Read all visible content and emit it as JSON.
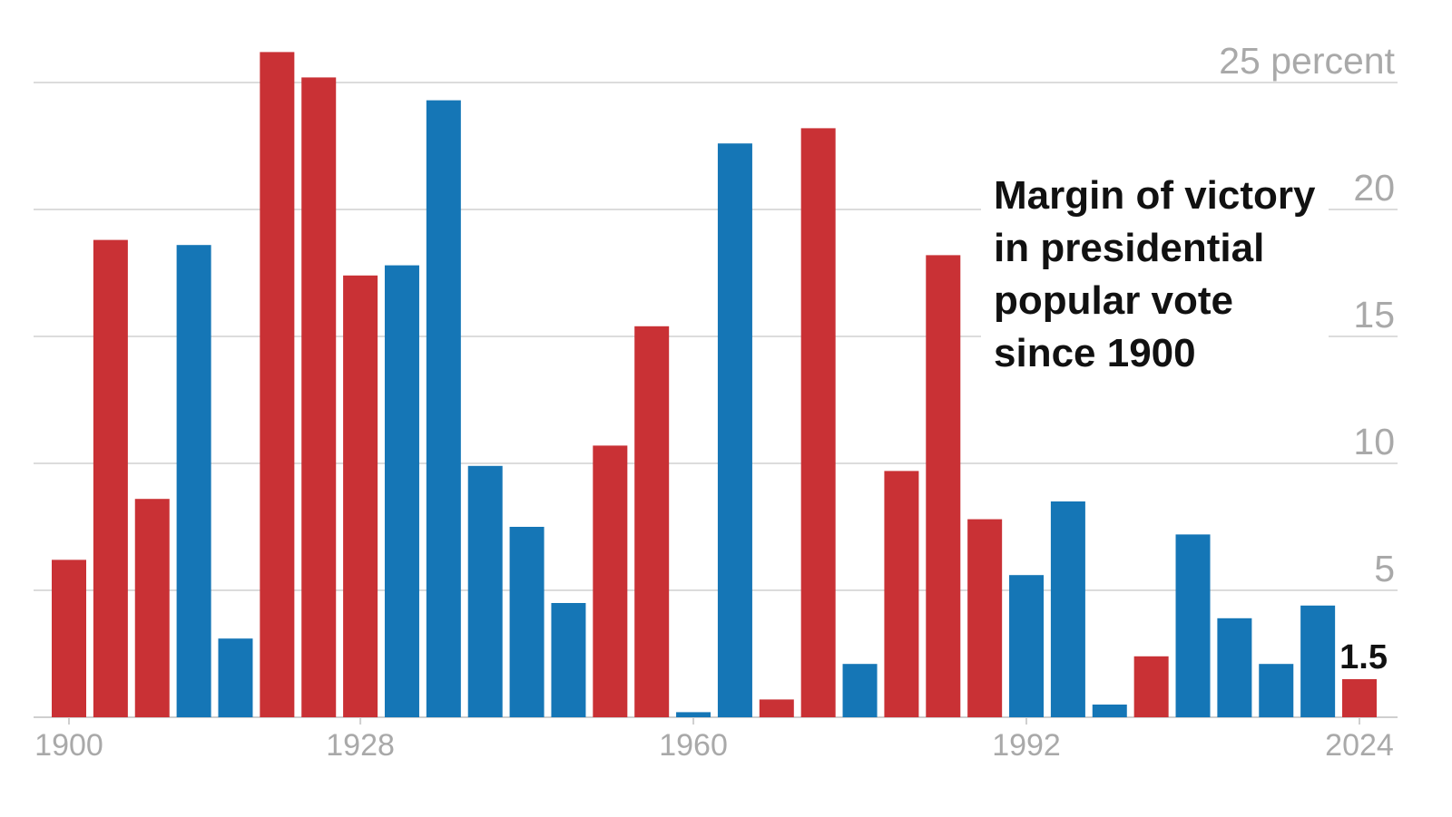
{
  "chart_data": {
    "type": "bar",
    "title": [
      "Margin of victory",
      "in presidential",
      "popular vote",
      "since 1900"
    ],
    "y_unit_label": "percent",
    "ylim": [
      0,
      25
    ],
    "y_ticks": [
      5,
      10,
      15,
      20,
      25
    ],
    "x_tick_labels": [
      "1900",
      "1928",
      "1960",
      "1992",
      "2024"
    ],
    "grid": true,
    "legend": "none",
    "colors": {
      "Republican": "#c93135",
      "Democrat": "#1576b6"
    },
    "years": [
      1900,
      1904,
      1908,
      1912,
      1916,
      1920,
      1924,
      1928,
      1932,
      1936,
      1940,
      1944,
      1948,
      1952,
      1956,
      1960,
      1964,
      1968,
      1972,
      1976,
      1980,
      1984,
      1988,
      1992,
      1996,
      2000,
      2004,
      2008,
      2012,
      2016,
      2020,
      2024
    ],
    "values": [
      6.2,
      18.8,
      8.6,
      18.6,
      3.1,
      26.2,
      25.2,
      17.4,
      17.8,
      24.3,
      9.9,
      7.5,
      4.5,
      10.7,
      15.4,
      0.2,
      22.6,
      0.7,
      23.2,
      2.1,
      9.7,
      18.2,
      7.8,
      5.6,
      8.5,
      0.5,
      2.4,
      7.2,
      3.9,
      2.1,
      4.4,
      1.5
    ],
    "parties": [
      "Republican",
      "Republican",
      "Republican",
      "Democrat",
      "Democrat",
      "Republican",
      "Republican",
      "Republican",
      "Democrat",
      "Democrat",
      "Democrat",
      "Democrat",
      "Democrat",
      "Republican",
      "Republican",
      "Democrat",
      "Democrat",
      "Republican",
      "Republican",
      "Democrat",
      "Republican",
      "Republican",
      "Republican",
      "Democrat",
      "Democrat",
      "Democrat",
      "Republican",
      "Democrat",
      "Democrat",
      "Democrat",
      "Democrat",
      "Republican"
    ],
    "annotation": {
      "year": 2024,
      "text": "1.5"
    }
  }
}
